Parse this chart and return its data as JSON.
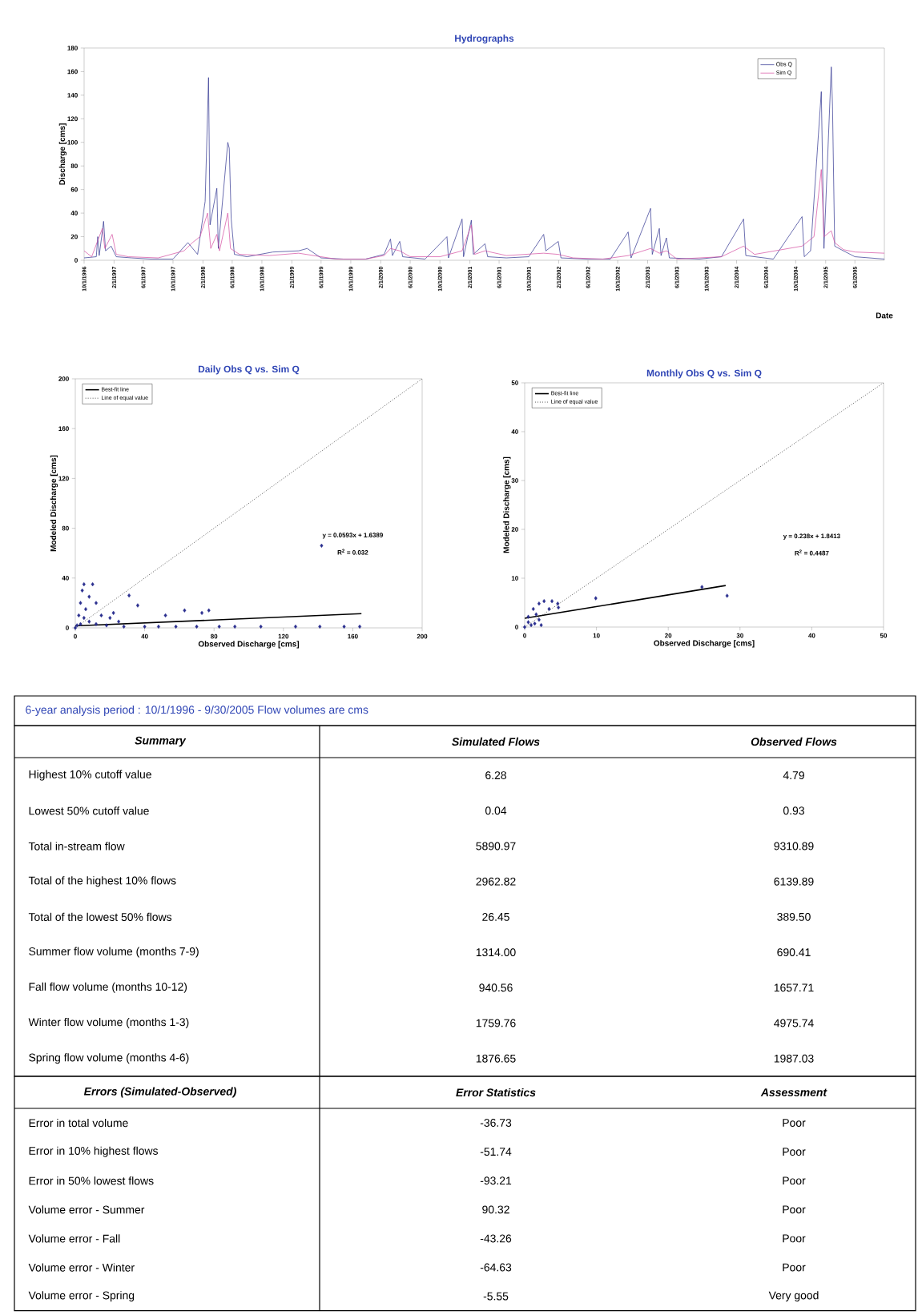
{
  "chart_data": [
    {
      "type": "line",
      "title": "Hydrographs",
      "ylabel": "Discharge [cms]",
      "xlabel": "Date",
      "xlim": [
        "1996-10-01",
        "2005-09-30"
      ],
      "ylim": [
        0,
        180
      ],
      "yticks": [
        0,
        20,
        40,
        60,
        80,
        100,
        120,
        140,
        160,
        180
      ],
      "xticks": [
        {
          "value": "1996-10-01",
          "label": "10/1/1996"
        },
        {
          "value": "1997-02-01",
          "label": "2/1/1997"
        },
        {
          "value": "1997-06-01",
          "label": "6/1/1997"
        },
        {
          "value": "1997-10-01",
          "label": "10/1/1997"
        },
        {
          "value": "1998-02-01",
          "label": "2/1/1998"
        },
        {
          "value": "1998-06-01",
          "label": "6/1/1998"
        },
        {
          "value": "1998-10-01",
          "label": "10/1/1998"
        },
        {
          "value": "1999-02-01",
          "label": "2/1/1999"
        },
        {
          "value": "1999-06-01",
          "label": "6/1/1999"
        },
        {
          "value": "1999-10-01",
          "label": "10/1/1999"
        },
        {
          "value": "2000-02-01",
          "label": "2/1/2000"
        },
        {
          "value": "2000-06-01",
          "label": "6/1/2000"
        },
        {
          "value": "2000-10-01",
          "label": "10/1/2000"
        },
        {
          "value": "2001-02-01",
          "label": "2/1/2001"
        },
        {
          "value": "2001-06-01",
          "label": "6/1/2001"
        },
        {
          "value": "2001-10-01",
          "label": "10/1/2001"
        },
        {
          "value": "2002-02-01",
          "label": "2/1/2002"
        },
        {
          "value": "2002-06-01",
          "label": "6/1/2002"
        },
        {
          "value": "2002-10-01",
          "label": "10/1/2002"
        },
        {
          "value": "2003-02-01",
          "label": "2/1/2003"
        },
        {
          "value": "2003-06-01",
          "label": "6/1/2003"
        },
        {
          "value": "2003-10-01",
          "label": "10/1/2003"
        },
        {
          "value": "2004-02-01",
          "label": "2/1/2004"
        },
        {
          "value": "2004-06-01",
          "label": "6/1/2004"
        },
        {
          "value": "2004-10-01",
          "label": "10/1/2004"
        },
        {
          "value": "2005-02-01",
          "label": "2/1/2005"
        },
        {
          "value": "2005-06-01",
          "label": "6/1/2005"
        }
      ],
      "legend": "top right",
      "series": [
        {
          "name": "Obs Q",
          "color": "#2b2f8f",
          "x": [
            "1996-10-01",
            "1996-11-20",
            "1996-11-26",
            "1996-12-02",
            "1996-12-20",
            "1996-12-28",
            "1997-01-20",
            "1997-02-10",
            "1997-04-15",
            "1997-07-01",
            "1997-10-01",
            "1997-12-01",
            "1998-01-10",
            "1998-02-10",
            "1998-02-24",
            "1998-03-02",
            "1998-03-30",
            "1998-04-05",
            "1998-05-14",
            "1998-05-20",
            "1998-05-28",
            "1998-06-10",
            "1998-08-01",
            "1998-11-15",
            "1999-03-01",
            "1999-04-05",
            "1999-06-01",
            "1999-09-01",
            "1999-12-01",
            "2000-02-15",
            "2000-03-12",
            "2000-03-20",
            "2000-04-19",
            "2000-05-01",
            "2000-08-01",
            "2000-10-30",
            "2000-11-05",
            "2000-12-31",
            "2001-01-06",
            "2001-02-07",
            "2001-02-15",
            "2001-04-04",
            "2001-04-15",
            "2001-07-01",
            "2001-10-01",
            "2001-12-01",
            "2001-12-10",
            "2002-01-30",
            "2002-02-10",
            "2002-06-01",
            "2002-09-01",
            "2002-11-13",
            "2002-11-25",
            "2003-02-13",
            "2003-02-20",
            "2003-03-21",
            "2003-03-28",
            "2003-04-19",
            "2003-05-01",
            "2003-09-01",
            "2003-12-01",
            "2004-03-01",
            "2004-03-10",
            "2004-07-01",
            "2004-10-27",
            "2004-11-05",
            "2004-12-01",
            "2005-01-14",
            "2005-01-25",
            "2005-02-24",
            "2005-03-01",
            "2005-03-10",
            "2005-04-15",
            "2005-06-01",
            "2005-09-30"
          ],
          "values": [
            2,
            3,
            20,
            4,
            33,
            8,
            12,
            3,
            2,
            1,
            1,
            15,
            5,
            50,
            155,
            30,
            61,
            10,
            100,
            95,
            35,
            5,
            3,
            7,
            8,
            10,
            2,
            1,
            1,
            5,
            18,
            4,
            16,
            3,
            1,
            20,
            2,
            35,
            3,
            34,
            5,
            14,
            3,
            2,
            3,
            22,
            8,
            16,
            2,
            1,
            1,
            24,
            2,
            44,
            5,
            27,
            4,
            19,
            2,
            1,
            3,
            35,
            4,
            1,
            37,
            3,
            8,
            143,
            10,
            164,
            131,
            12,
            8,
            3,
            1
          ]
        },
        {
          "name": "Sim Q",
          "color": "#d44a9e",
          "x": [
            "1996-10-01",
            "1996-11-01",
            "1996-12-15",
            "1996-12-25",
            "1997-01-24",
            "1997-02-10",
            "1997-04-01",
            "1997-08-01",
            "1997-11-15",
            "1997-12-20",
            "1998-01-20",
            "1998-02-20",
            "1998-03-05",
            "1998-03-30",
            "1998-04-10",
            "1998-05-14",
            "1998-05-25",
            "1998-07-01",
            "1998-11-01",
            "1999-03-01",
            "1999-06-01",
            "1999-08-01",
            "1999-12-01",
            "2000-02-15",
            "2000-03-12",
            "2000-04-19",
            "2000-06-01",
            "2000-10-01",
            "2000-12-31",
            "2001-02-07",
            "2001-02-20",
            "2001-04-04",
            "2001-07-01",
            "2001-12-01",
            "2002-01-30",
            "2002-04-01",
            "2002-08-01",
            "2002-11-14",
            "2003-02-13",
            "2003-03-21",
            "2003-04-19",
            "2003-06-01",
            "2003-12-01",
            "2004-03-01",
            "2004-04-15",
            "2004-10-27",
            "2004-12-15",
            "2005-01-14",
            "2005-01-25",
            "2005-02-24",
            "2005-03-10",
            "2005-04-15",
            "2005-06-01",
            "2005-09-30"
          ],
          "values": [
            8,
            3,
            27,
            10,
            22,
            5,
            3,
            2,
            8,
            15,
            20,
            40,
            10,
            22,
            8,
            40,
            10,
            5,
            4,
            6,
            3,
            1,
            1,
            4,
            10,
            8,
            3,
            3,
            8,
            30,
            5,
            8,
            4,
            6,
            5,
            2,
            1,
            4,
            10,
            6,
            8,
            1,
            3,
            12,
            5,
            12,
            20,
            77,
            20,
            25,
            15,
            9,
            7,
            6
          ]
        }
      ]
    },
    {
      "type": "scatter",
      "title": "Daily Obs Q vs. Sim Q",
      "xlabel": "Observed Discharge [cms]",
      "ylabel": "Modeled Discharge [cms]",
      "xlim": [
        0,
        200
      ],
      "ylim": [
        0,
        200
      ],
      "xticks": [
        0,
        40,
        80,
        120,
        160,
        200
      ],
      "yticks": [
        0,
        40,
        80,
        120,
        160,
        200
      ],
      "legend": "top left",
      "annotations": [
        "y = 0.0593x + 1.6389",
        "R$^{2}$ = 0.032"
      ],
      "series": [
        {
          "color": "#2b2f8f",
          "marker": "diamond",
          "x": [
            0,
            1,
            2,
            3,
            3,
            4,
            5,
            5,
            6,
            8,
            8,
            10,
            12,
            12,
            15,
            18,
            20,
            22,
            25,
            28,
            31,
            36,
            40,
            48,
            52,
            58,
            63,
            70,
            73,
            77,
            83,
            92,
            107,
            127,
            141,
            142,
            155,
            164
          ],
          "values": [
            0,
            2,
            10,
            20,
            3,
            30,
            35,
            8,
            15,
            25,
            5,
            35,
            20,
            3,
            10,
            2,
            8,
            12,
            5,
            1,
            26,
            18,
            1,
            1,
            10,
            1,
            14,
            1,
            12,
            14,
            1,
            1,
            1,
            1,
            1,
            66,
            1,
            1
          ]
        },
        {
          "type": "line",
          "name": "Best-fit line",
          "color": "#000000",
          "line_style": "solid",
          "x": [
            0,
            165
          ],
          "values": [
            1.6,
            11.4
          ]
        },
        {
          "type": "line",
          "name": "Line of equal value",
          "color": "#555555",
          "line_style": "dotted",
          "x": [
            0,
            200
          ],
          "values": [
            0,
            200
          ]
        }
      ]
    },
    {
      "type": "scatter",
      "title": "Monthly Obs Q vs. Sim Q",
      "xlabel": "Observed Discharge [cms]",
      "ylabel": "Modeled Discharge [cms]",
      "xlim": [
        0,
        50
      ],
      "ylim": [
        0,
        50
      ],
      "xticks": [
        0,
        10,
        20,
        30,
        40,
        50
      ],
      "yticks": [
        0,
        10,
        20,
        30,
        40,
        50
      ],
      "legend": "top left",
      "annotations": [
        "y = 0.238x + 1.8413",
        "R$^{2}$ = 0.4487"
      ],
      "series": [
        {
          "color": "#2b2f8f",
          "marker": "diamond",
          "x": [
            0,
            0.5,
            0.5,
            0.9,
            1.2,
            1.4,
            1.6,
            2.0,
            2.0,
            2.3,
            2.7,
            3.4,
            3.8,
            4.6,
            4.7,
            9.9,
            24.7,
            28.2
          ],
          "values": [
            0,
            2.1,
            1,
            0.4,
            3.7,
            0.7,
            2.6,
            4.8,
            1.5,
            0.4,
            5.3,
            3.7,
            5.3,
            4.8,
            4,
            5.9,
            8.2,
            6.4
          ]
        },
        {
          "type": "line",
          "name": "Best-fit line",
          "color": "#000000",
          "line_style": "solid",
          "x": [
            0,
            28
          ],
          "values": [
            1.8,
            8.5
          ]
        },
        {
          "type": "line",
          "name": "Line of equal value",
          "color": "#555555",
          "line_style": "dotted",
          "x": [
            0,
            50
          ],
          "values": [
            0,
            50
          ]
        }
      ]
    },
    {
      "type": "other",
      "title": "6-year analysis period : 10/1/1996 - 9/30/2005 Flow volumes are cms",
      "annotations": [
        "Summary",
        "Simulated Flows",
        "Observed Flows",
        "Highest 10% cutoff value",
        "6.28",
        "4.79",
        "Lowest 50% cutoff value",
        "0.04",
        "0.93",
        "Total in-stream flow",
        "5890.97",
        "9310.89",
        "Total of the highest 10% flows",
        "2962.82",
        "6139.89",
        "Total of the lowest 50% flows",
        "26.45",
        "389.50",
        "Summer flow volume (months 7-9)",
        "1314.00",
        "690.41",
        "Fall flow volume (months 10-12)",
        "940.56",
        "1657.71",
        "Winter flow volume (months 1-3)",
        "1759.76",
        "4975.74",
        "Spring flow volume (months 4-6)",
        "1876.65",
        "1987.03"
      ]
    },
    {
      "type": "other",
      "annotations": [
        "Errors (Simulated-Observed)",
        "Error Statistics",
        "Assessment",
        "Error in total volume",
        "-36.73",
        "Poor",
        "Error in 10% highest flows",
        "-51.74",
        "Poor",
        "Error in 50% lowest flows",
        "-93.21",
        "Poor",
        "Volume error - Summer",
        "90.32",
        "Poor",
        "Volume error - Fall",
        "-43.26",
        "Poor",
        "Volume error - Winter",
        "-64.63",
        "Poor",
        "Volume error - Spring",
        "-5.55",
        "Very good"
      ]
    }
  ]
}
